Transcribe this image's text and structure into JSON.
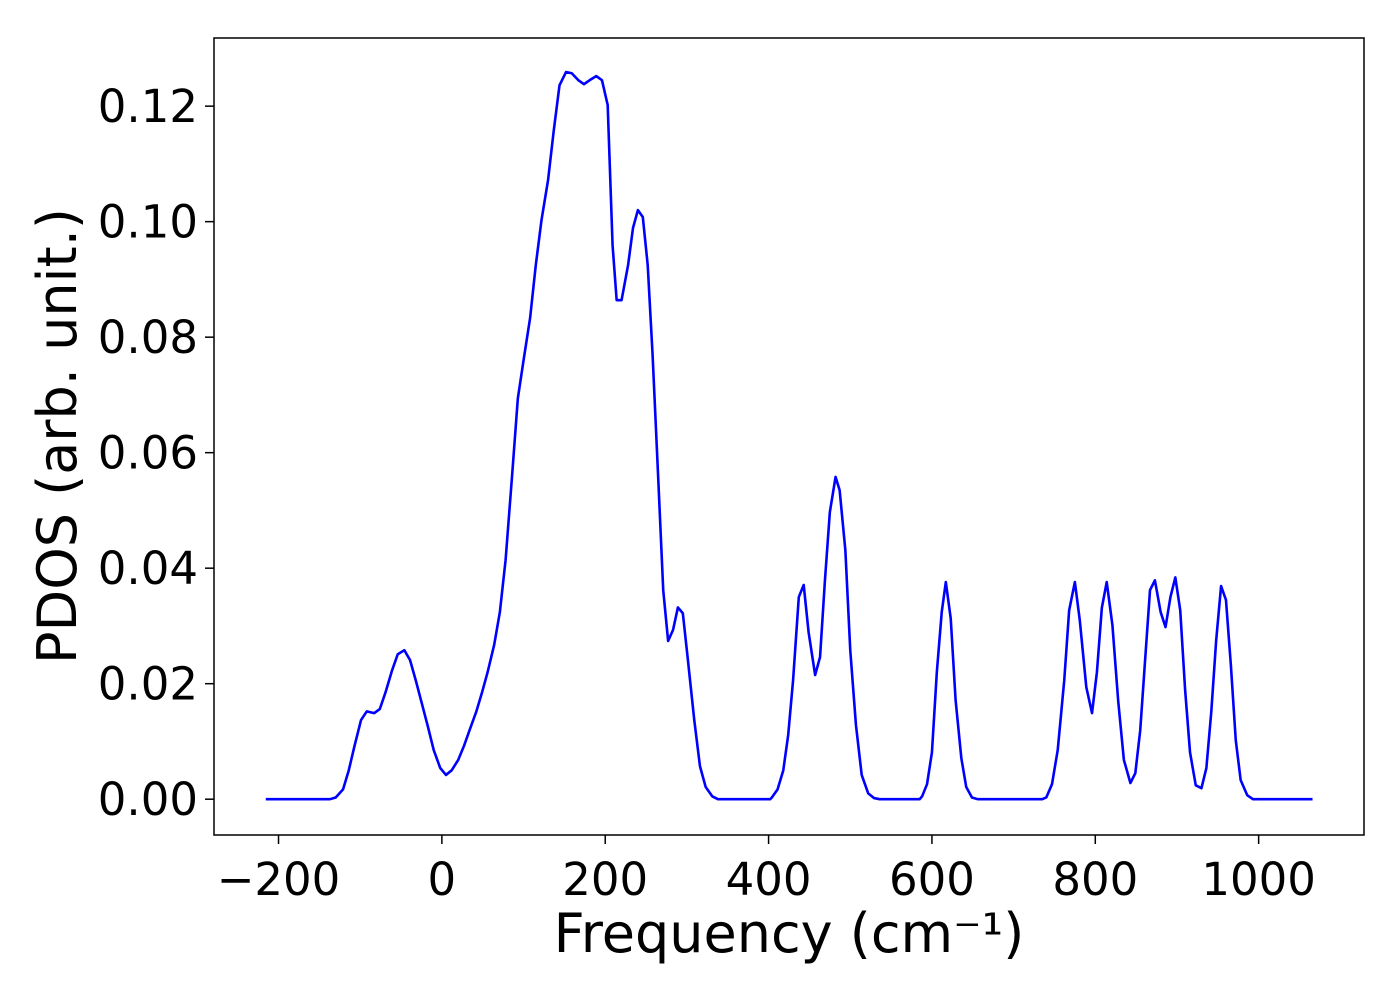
{
  "chart_data": {
    "type": "line",
    "xlabel": "Frequency (cm⁻¹)",
    "ylabel": "PDOS (arb. unit.)",
    "xlim": [
      -279,
      1129
    ],
    "ylim": [
      -0.0062,
      0.1318
    ],
    "xticks": [
      {
        "value": -200,
        "label": "−200"
      },
      0,
      200,
      400,
      600,
      800,
      1000
    ],
    "yticks": [
      {
        "value": 0,
        "label": "0.00"
      },
      {
        "value": 0.02,
        "label": "0.02"
      },
      {
        "value": 0.04,
        "label": "0.04"
      },
      {
        "value": 0.06,
        "label": "0.06"
      },
      {
        "value": 0.08,
        "label": "0.08"
      },
      {
        "value": 0.1,
        "label": "0.10"
      },
      {
        "value": 0.12,
        "label": "0.12"
      }
    ],
    "grid": false,
    "x": [
      -215.6,
      -137,
      -130,
      -121,
      -114,
      -107,
      -99,
      -92,
      -83,
      -76,
      -69,
      -61,
      -54,
      -46,
      -39,
      -32,
      -24,
      -17,
      -10,
      -2,
      5,
      12,
      20,
      27,
      34,
      42,
      49,
      56,
      64,
      71,
      78,
      86,
      93,
      100,
      108,
      115,
      122,
      130,
      137,
      144,
      152,
      159,
      167,
      174,
      181,
      189,
      196,
      203,
      209,
      214,
      220,
      228,
      234,
      240,
      246,
      252,
      258,
      265,
      271,
      277,
      283,
      289,
      295,
      301,
      309,
      316,
      323,
      331,
      338,
      402,
      404,
      411,
      418,
      424,
      430,
      437,
      443,
      449,
      457,
      463,
      469,
      475,
      482,
      487,
      494,
      500,
      507,
      514,
      522,
      529,
      536,
      585,
      588,
      594,
      600,
      606,
      612,
      617,
      623,
      629,
      636,
      642,
      649,
      656,
      735,
      740,
      747,
      754,
      762,
      768,
      775,
      781,
      789,
      796,
      802,
      808,
      814,
      821,
      828,
      835,
      843,
      849,
      855,
      861,
      867,
      873,
      880,
      886,
      892,
      898,
      904,
      910,
      916,
      923,
      930,
      936,
      942,
      948,
      954,
      960,
      966,
      972,
      978,
      986,
      993,
      1066
    ],
    "series": [
      {
        "name": "PDOS",
        "color": "#0000ff",
        "values": [
          0,
          0,
          0.0003,
          0.0017,
          0.005,
          0.0092,
          0.0137,
          0.0152,
          0.0149,
          0.0156,
          0.0185,
          0.0223,
          0.0251,
          0.0258,
          0.0241,
          0.0206,
          0.0163,
          0.0125,
          0.0085,
          0.0054,
          0.0042,
          0.005,
          0.0068,
          0.0092,
          0.012,
          0.0151,
          0.0184,
          0.022,
          0.0267,
          0.0324,
          0.0414,
          0.0561,
          0.0694,
          0.076,
          0.0833,
          0.0925,
          0.1003,
          0.1072,
          0.1158,
          0.1236,
          0.1259,
          0.1257,
          0.1245,
          0.1238,
          0.1245,
          0.1252,
          0.1245,
          0.1202,
          0.0959,
          0.0864,
          0.0864,
          0.0925,
          0.0989,
          0.102,
          0.1008,
          0.0925,
          0.0769,
          0.0552,
          0.0362,
          0.0274,
          0.0293,
          0.0332,
          0.0322,
          0.0244,
          0.0137,
          0.0057,
          0.0021,
          0.0005,
          0,
          0,
          0.0003,
          0.0017,
          0.005,
          0.0111,
          0.0206,
          0.035,
          0.0371,
          0.0289,
          0.0215,
          0.0246,
          0.0379,
          0.0497,
          0.0558,
          0.0535,
          0.0431,
          0.0258,
          0.0128,
          0.0042,
          0.001,
          0.0002,
          0,
          0,
          0.0005,
          0.0026,
          0.0081,
          0.022,
          0.0324,
          0.0376,
          0.0313,
          0.0171,
          0.0071,
          0.0021,
          0.0003,
          0,
          0,
          0.0003,
          0.0026,
          0.0085,
          0.0206,
          0.0327,
          0.0376,
          0.031,
          0.0194,
          0.0149,
          0.022,
          0.0331,
          0.0376,
          0.0301,
          0.0171,
          0.0068,
          0.0028,
          0.0045,
          0.0119,
          0.0241,
          0.0362,
          0.0379,
          0.0324,
          0.0298,
          0.035,
          0.0384,
          0.0327,
          0.0189,
          0.0081,
          0.0024,
          0.0019,
          0.0054,
          0.0151,
          0.0275,
          0.0369,
          0.0345,
          0.0232,
          0.0102,
          0.0033,
          0.0007,
          0,
          0
        ]
      }
    ]
  }
}
